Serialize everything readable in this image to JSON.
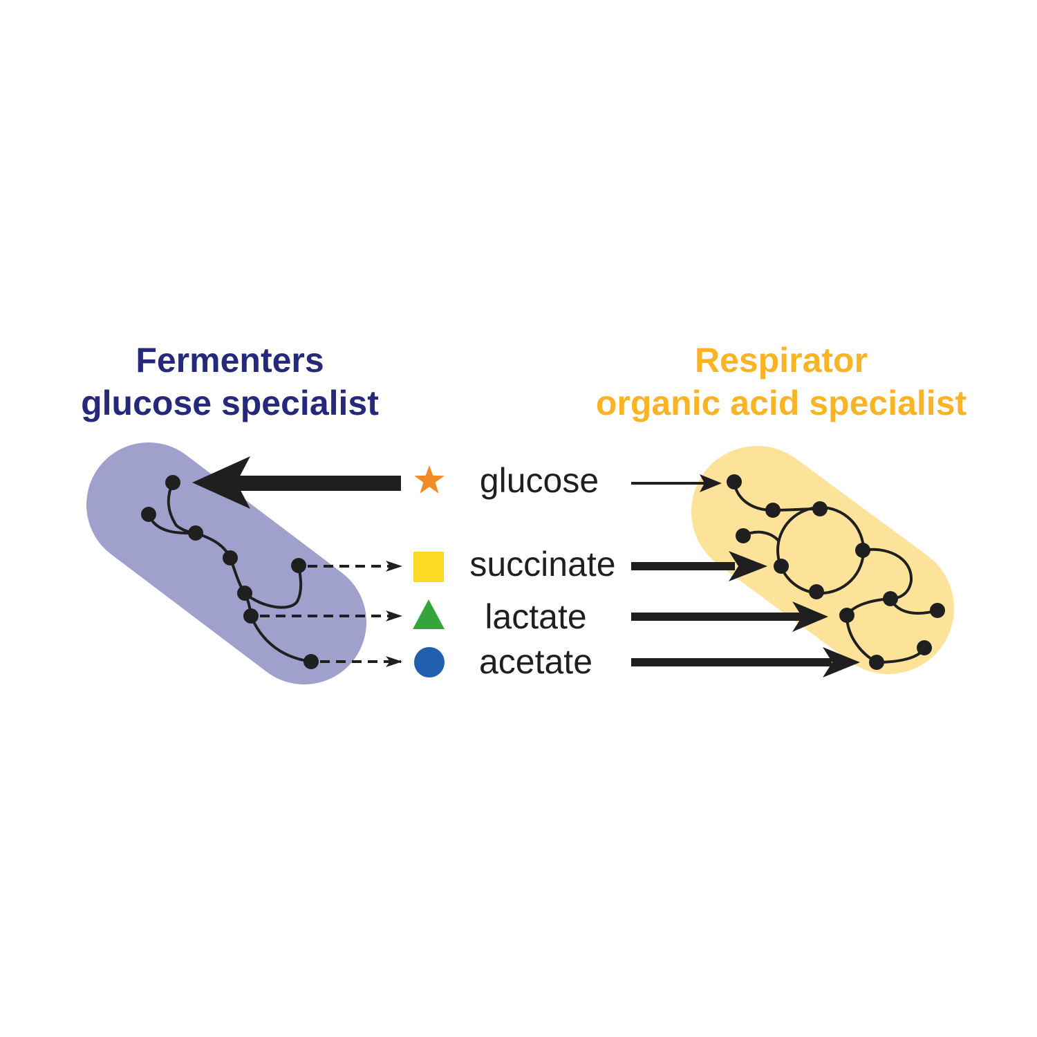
{
  "fermenters": {
    "title": "Fermenters",
    "subtitle": "glucose specialist",
    "color": "#26297a",
    "cell_color": "#9fa0cb"
  },
  "respirator": {
    "title": "Respirator",
    "subtitle": "organic acid specialist",
    "color": "#f9b426",
    "cell_color": "#fde39a"
  },
  "metabolites": [
    {
      "label": "glucose",
      "icon": "star-icon",
      "color": "#f08a24"
    },
    {
      "label": "succinate",
      "icon": "square-icon",
      "color": "#fcd925"
    },
    {
      "label": "lactate",
      "icon": "triangle-icon",
      "color": "#34a43c"
    },
    {
      "label": "acetate",
      "icon": "circle-icon",
      "color": "#1f5fae"
    }
  ]
}
